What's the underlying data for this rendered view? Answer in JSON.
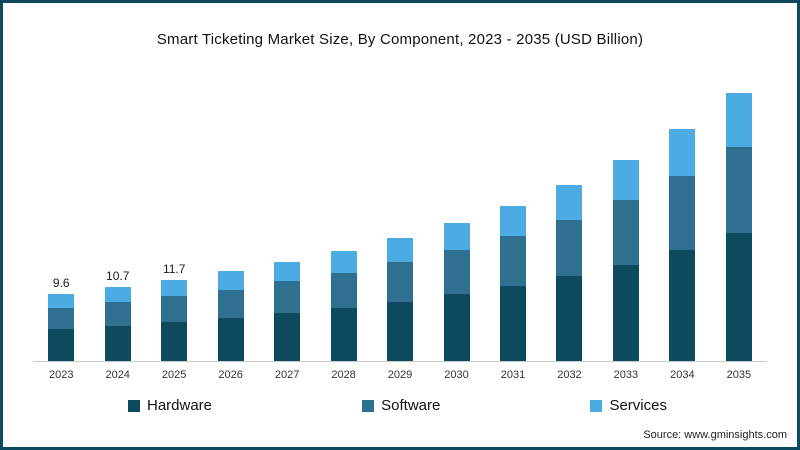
{
  "frame_color": "#0d4a5e",
  "source": "Source: www.gminsights.com",
  "chart_data": {
    "type": "bar",
    "stacked": true,
    "title": "Smart Ticketing Market Size, By Component, 2023 - 2035 (USD Billion)",
    "xlabel": "",
    "ylabel": "",
    "categories": [
      "2023",
      "2024",
      "2025",
      "2026",
      "2027",
      "2028",
      "2029",
      "2030",
      "2031",
      "2032",
      "2033",
      "2034",
      "2035"
    ],
    "series": [
      {
        "name": "Hardware",
        "color": "#0d4a5e",
        "values": [
          4.6,
          5.1,
          5.6,
          6.2,
          6.9,
          7.6,
          8.5,
          9.6,
          10.8,
          12.2,
          13.9,
          16.0,
          18.5
        ]
      },
      {
        "name": "Software",
        "color": "#2f6f8f",
        "values": [
          3.1,
          3.4,
          3.7,
          4.1,
          4.6,
          5.1,
          5.7,
          6.4,
          7.2,
          8.1,
          9.3,
          10.7,
          12.4
        ]
      },
      {
        "name": "Services",
        "color": "#4dabe4",
        "values": [
          1.9,
          2.2,
          2.4,
          2.6,
          2.8,
          3.2,
          3.5,
          3.9,
          4.4,
          5.1,
          5.8,
          6.7,
          7.7
        ]
      }
    ],
    "totals": [
      9.6,
      10.7,
      11.7,
      12.9,
      14.3,
      15.9,
      17.7,
      19.9,
      22.4,
      25.4,
      29.0,
      33.4,
      38.6
    ],
    "bar_labels": {
      "0": "9.6",
      "1": "10.7",
      "2": "11.7"
    },
    "ylim": [
      0,
      40
    ],
    "grid": false,
    "legend_position": "bottom"
  }
}
